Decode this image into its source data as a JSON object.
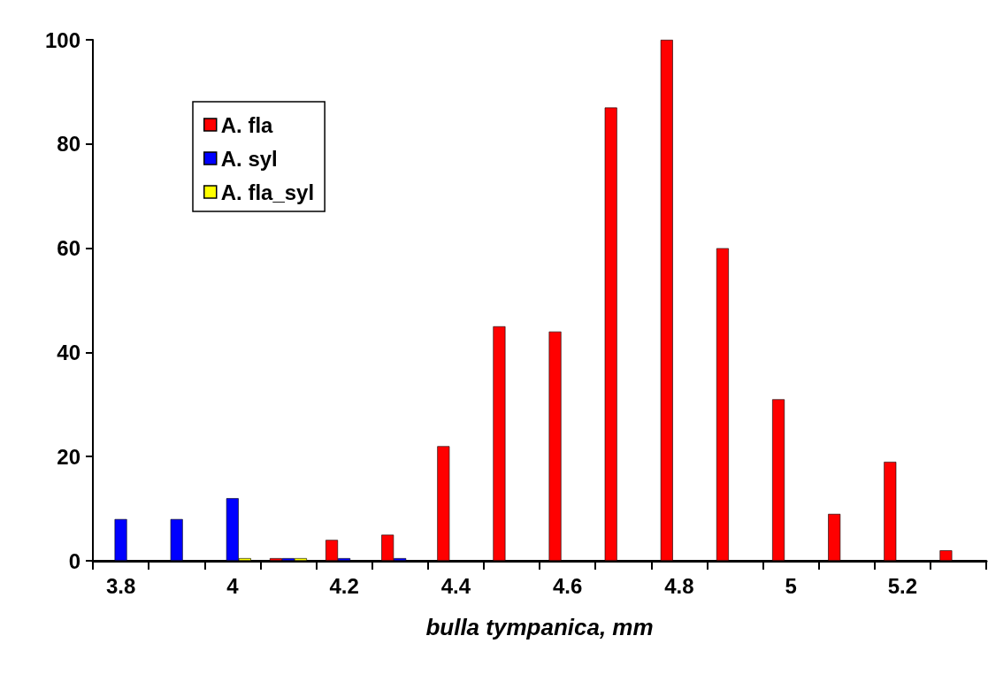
{
  "chart_data": {
    "type": "bar",
    "xlabel": "bulla tympanica, mm",
    "categories": [
      "3.8",
      null,
      "4",
      null,
      "4.2",
      null,
      "4.4",
      null,
      "4.6",
      null,
      "4.8",
      null,
      "5",
      null,
      "5.2",
      null
    ],
    "series": [
      {
        "name": "A. fla",
        "color": "#ff0000",
        "values": [
          null,
          null,
          null,
          0.5,
          4,
          5,
          22,
          45,
          44,
          87,
          100,
          60,
          31,
          9,
          19,
          2
        ]
      },
      {
        "name": "A. syl",
        "color": "#0000ff",
        "values": [
          8,
          8,
          12,
          0.5,
          0.5,
          0.5,
          null,
          null,
          null,
          null,
          null,
          null,
          null,
          null,
          null,
          null
        ]
      },
      {
        "name": "A. fla_syl",
        "color": "#ffff00",
        "values": [
          null,
          null,
          0.5,
          0.5,
          null,
          null,
          null,
          null,
          null,
          null,
          null,
          null,
          null,
          null,
          null,
          null
        ]
      }
    ],
    "ylim": [
      0,
      100
    ],
    "yticks": [
      0,
      20,
      40,
      60,
      80,
      100
    ],
    "grid": false,
    "legend": "top left"
  }
}
